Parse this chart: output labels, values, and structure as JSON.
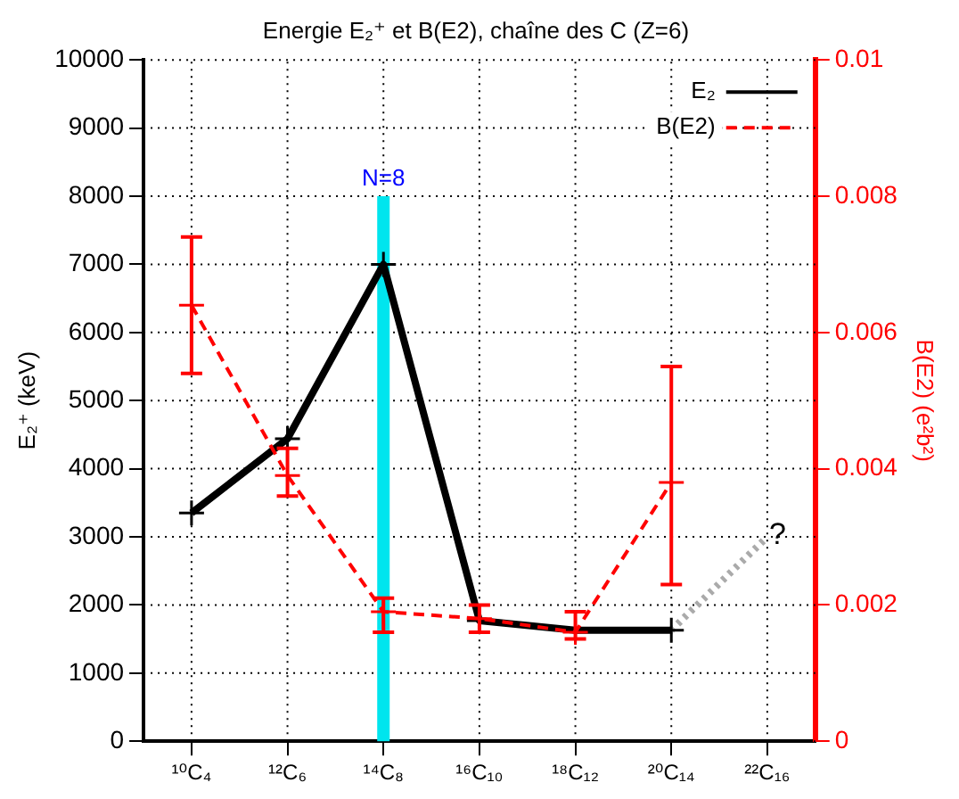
{
  "chart_data": {
    "type": "line",
    "title": "Energie E₂⁺ et B(E2), chaîne des C (Z=6)",
    "ylabel": "E₂⁺ (keV)",
    "y2label": "B(E2) (e²b²)",
    "categories": [
      "¹⁰C₄",
      "¹²C₆",
      "¹⁴C₈",
      "¹⁶C₁₀",
      "¹⁸C₁₂",
      "²⁰C₁₄",
      "²²C₁₆"
    ],
    "series": [
      {
        "name": "E₂",
        "color": "#000000",
        "values": [
          3350,
          4440,
          7000,
          1770,
          1630,
          1630,
          null
        ]
      },
      {
        "name": "B(E2)",
        "color": "#ff0000",
        "axis": "y2",
        "line_style": "dashed",
        "values": [
          0.0064,
          0.0039,
          0.0019,
          0.0018,
          0.0016,
          0.0038,
          null
        ],
        "errors": [
          [
            0.0054,
            0.0074
          ],
          [
            0.0036,
            0.0043
          ],
          [
            0.0016,
            0.0021
          ],
          [
            0.0016,
            0.002
          ],
          [
            0.0015,
            0.0019
          ],
          [
            0.0023,
            0.0055
          ],
          null
        ]
      },
      {
        "color": "#aaaaaa",
        "line_style": "dotted",
        "marker": "none",
        "values": [
          null,
          null,
          null,
          null,
          null,
          1630,
          3000
        ]
      }
    ],
    "ylim": [
      0,
      10000
    ],
    "yticks": [
      0,
      1000,
      2000,
      3000,
      4000,
      5000,
      6000,
      7000,
      8000,
      9000,
      10000
    ],
    "y2lim": [
      0,
      0.01
    ],
    "y2ticks": [
      0,
      0.002,
      0.004,
      0.006,
      0.008,
      0.01
    ],
    "ref_lines": [
      {
        "axis": "x",
        "value": "¹⁴C₈",
        "label": "N=8",
        "color": "#00e5ee"
      }
    ],
    "annotations": [
      {
        "text": "?",
        "x": "²²C₁₆",
        "y": 3000
      }
    ],
    "grid": true,
    "legend": "top right",
    "marker": "cross",
    "line_style": "solid"
  }
}
